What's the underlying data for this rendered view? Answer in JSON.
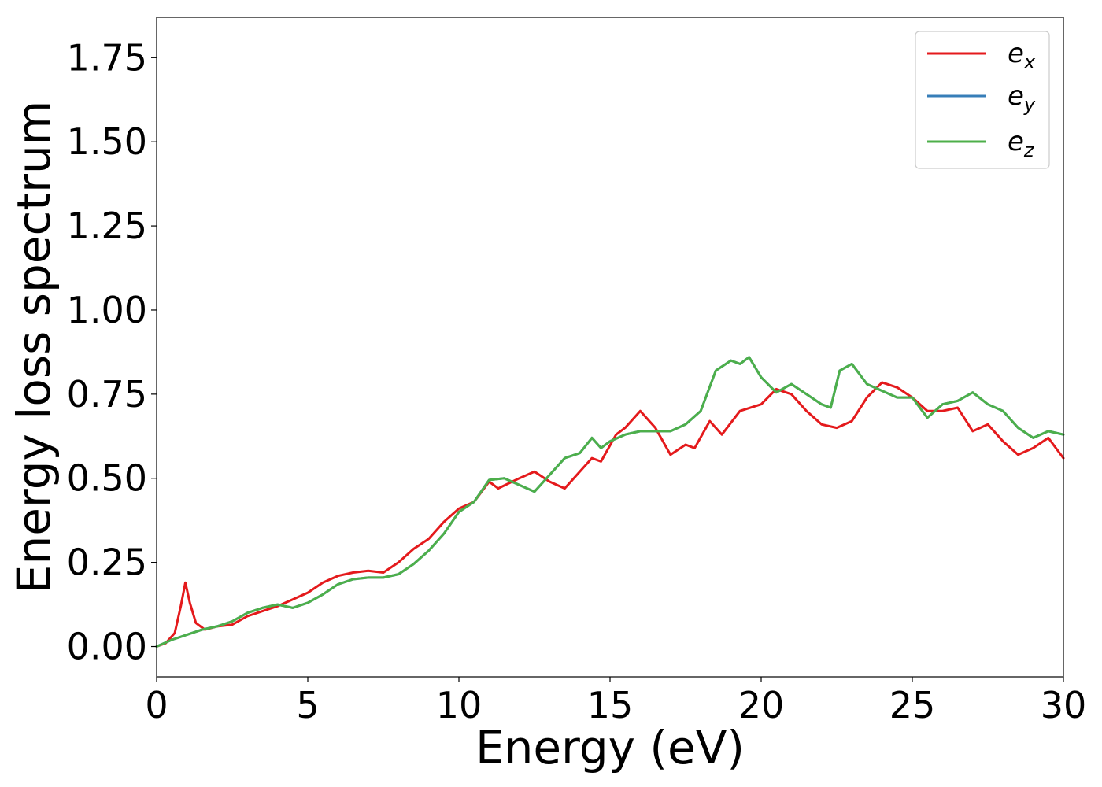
{
  "chart_data": {
    "type": "line",
    "title": "",
    "xlabel": "Energy (eV)",
    "ylabel": "Energy loss spectrum",
    "xlim": [
      0,
      30
    ],
    "ylim": [
      -0.09,
      1.87
    ],
    "xticks": [
      0,
      5,
      10,
      15,
      20,
      25,
      30
    ],
    "yticks": [
      0.0,
      0.25,
      0.5,
      0.75,
      1.0,
      1.25,
      1.5,
      1.75
    ],
    "xtick_labels": [
      "0",
      "5",
      "10",
      "15",
      "20",
      "25",
      "30"
    ],
    "ytick_labels": [
      "0.00",
      "0.25",
      "0.50",
      "0.75",
      "1.00",
      "1.25",
      "1.50",
      "1.75"
    ],
    "grid": false,
    "legend_position": "top-right",
    "series": [
      {
        "name": "e_x",
        "legend_base": "e",
        "legend_sub": "x",
        "color": "#e41a1c",
        "points": [
          [
            0,
            0
          ],
          [
            0.3,
            0.01
          ],
          [
            0.6,
            0.04
          ],
          [
            0.8,
            0.12
          ],
          [
            0.95,
            0.19
          ],
          [
            1.1,
            0.13
          ],
          [
            1.3,
            0.07
          ],
          [
            1.6,
            0.05
          ],
          [
            2,
            0.06
          ],
          [
            2.5,
            0.065
          ],
          [
            3,
            0.09
          ],
          [
            3.5,
            0.105
          ],
          [
            4,
            0.12
          ],
          [
            4.5,
            0.14
          ],
          [
            5,
            0.16
          ],
          [
            5.5,
            0.19
          ],
          [
            6,
            0.21
          ],
          [
            6.5,
            0.22
          ],
          [
            7,
            0.225
          ],
          [
            7.5,
            0.22
          ],
          [
            8,
            0.25
          ],
          [
            8.5,
            0.29
          ],
          [
            9,
            0.32
          ],
          [
            9.5,
            0.37
          ],
          [
            10,
            0.41
          ],
          [
            10.5,
            0.43
          ],
          [
            11,
            0.49
          ],
          [
            11.3,
            0.47
          ],
          [
            12,
            0.5
          ],
          [
            12.5,
            0.52
          ],
          [
            13,
            0.49
          ],
          [
            13.5,
            0.47
          ],
          [
            14,
            0.52
          ],
          [
            14.4,
            0.56
          ],
          [
            14.7,
            0.55
          ],
          [
            15.2,
            0.63
          ],
          [
            15.5,
            0.65
          ],
          [
            16,
            0.7
          ],
          [
            16.5,
            0.65
          ],
          [
            17,
            0.57
          ],
          [
            17.5,
            0.6
          ],
          [
            17.8,
            0.59
          ],
          [
            18.3,
            0.67
          ],
          [
            18.7,
            0.63
          ],
          [
            19.3,
            0.7
          ],
          [
            20,
            0.72
          ],
          [
            20.5,
            0.765
          ],
          [
            21,
            0.75
          ],
          [
            21.5,
            0.7
          ],
          [
            22,
            0.66
          ],
          [
            22.5,
            0.65
          ],
          [
            23,
            0.67
          ],
          [
            23.5,
            0.74
          ],
          [
            24,
            0.785
          ],
          [
            24.5,
            0.77
          ],
          [
            25,
            0.74
          ],
          [
            25.5,
            0.7
          ],
          [
            26,
            0.7
          ],
          [
            26.5,
            0.71
          ],
          [
            27,
            0.64
          ],
          [
            27.5,
            0.66
          ],
          [
            28,
            0.61
          ],
          [
            28.5,
            0.57
          ],
          [
            29,
            0.59
          ],
          [
            29.5,
            0.62
          ],
          [
            30,
            0.56
          ]
        ]
      },
      {
        "name": "e_y",
        "legend_base": "e",
        "legend_sub": "y",
        "color": "#377eb8",
        "points": [
          [
            0,
            0
          ],
          [
            0.5,
            0.02
          ],
          [
            1,
            0.035
          ],
          [
            1.5,
            0.05
          ],
          [
            2,
            0.06
          ],
          [
            2.5,
            0.075
          ],
          [
            3,
            0.1
          ],
          [
            3.5,
            0.115
          ],
          [
            4,
            0.125
          ],
          [
            4.5,
            0.115
          ],
          [
            5,
            0.13
          ],
          [
            5.5,
            0.155
          ],
          [
            6,
            0.185
          ],
          [
            6.5,
            0.2
          ],
          [
            7,
            0.205
          ],
          [
            7.5,
            0.205
          ],
          [
            8,
            0.215
          ],
          [
            8.5,
            0.245
          ],
          [
            9,
            0.285
          ],
          [
            9.5,
            0.335
          ],
          [
            10,
            0.4
          ],
          [
            10.5,
            0.43
          ],
          [
            11,
            0.495
          ],
          [
            11.5,
            0.5
          ],
          [
            12,
            0.48
          ],
          [
            12.5,
            0.46
          ],
          [
            13,
            0.51
          ],
          [
            13.5,
            0.56
          ],
          [
            14,
            0.575
          ],
          [
            14.4,
            0.62
          ],
          [
            14.7,
            0.59
          ],
          [
            15,
            0.61
          ],
          [
            15.5,
            0.63
          ],
          [
            16,
            0.64
          ],
          [
            16.5,
            0.64
          ],
          [
            17,
            0.64
          ],
          [
            17.5,
            0.66
          ],
          [
            18,
            0.7
          ],
          [
            18.5,
            0.82
          ],
          [
            19,
            0.85
          ],
          [
            19.3,
            0.84
          ],
          [
            19.6,
            0.86
          ],
          [
            20,
            0.8
          ],
          [
            20.5,
            0.755
          ],
          [
            21,
            0.78
          ],
          [
            21.5,
            0.75
          ],
          [
            22,
            0.72
          ],
          [
            22.3,
            0.71
          ],
          [
            22.6,
            0.82
          ],
          [
            23,
            0.84
          ],
          [
            23.5,
            0.78
          ],
          [
            24,
            0.76
          ],
          [
            24.5,
            0.74
          ],
          [
            25,
            0.74
          ],
          [
            25.5,
            0.68
          ],
          [
            26,
            0.72
          ],
          [
            26.5,
            0.73
          ],
          [
            27,
            0.755
          ],
          [
            27.5,
            0.72
          ],
          [
            28,
            0.7
          ],
          [
            28.5,
            0.65
          ],
          [
            29,
            0.62
          ],
          [
            29.5,
            0.64
          ],
          [
            30,
            0.63
          ]
        ]
      },
      {
        "name": "e_z",
        "legend_base": "e",
        "legend_sub": "z",
        "color": "#4daf4a",
        "points": [
          [
            0,
            0
          ],
          [
            0.5,
            0.02
          ],
          [
            1,
            0.035
          ],
          [
            1.5,
            0.05
          ],
          [
            2,
            0.06
          ],
          [
            2.5,
            0.075
          ],
          [
            3,
            0.1
          ],
          [
            3.5,
            0.115
          ],
          [
            4,
            0.125
          ],
          [
            4.5,
            0.115
          ],
          [
            5,
            0.13
          ],
          [
            5.5,
            0.155
          ],
          [
            6,
            0.185
          ],
          [
            6.5,
            0.2
          ],
          [
            7,
            0.205
          ],
          [
            7.5,
            0.205
          ],
          [
            8,
            0.215
          ],
          [
            8.5,
            0.245
          ],
          [
            9,
            0.285
          ],
          [
            9.5,
            0.335
          ],
          [
            10,
            0.4
          ],
          [
            10.5,
            0.43
          ],
          [
            11,
            0.495
          ],
          [
            11.5,
            0.5
          ],
          [
            12,
            0.48
          ],
          [
            12.5,
            0.46
          ],
          [
            13,
            0.51
          ],
          [
            13.5,
            0.56
          ],
          [
            14,
            0.575
          ],
          [
            14.4,
            0.62
          ],
          [
            14.7,
            0.59
          ],
          [
            15,
            0.61
          ],
          [
            15.5,
            0.63
          ],
          [
            16,
            0.64
          ],
          [
            16.5,
            0.64
          ],
          [
            17,
            0.64
          ],
          [
            17.5,
            0.66
          ],
          [
            18,
            0.7
          ],
          [
            18.5,
            0.82
          ],
          [
            19,
            0.85
          ],
          [
            19.3,
            0.84
          ],
          [
            19.6,
            0.86
          ],
          [
            20,
            0.8
          ],
          [
            20.5,
            0.755
          ],
          [
            21,
            0.78
          ],
          [
            21.5,
            0.75
          ],
          [
            22,
            0.72
          ],
          [
            22.3,
            0.71
          ],
          [
            22.6,
            0.82
          ],
          [
            23,
            0.84
          ],
          [
            23.5,
            0.78
          ],
          [
            24,
            0.76
          ],
          [
            24.5,
            0.74
          ],
          [
            25,
            0.74
          ],
          [
            25.5,
            0.68
          ],
          [
            26,
            0.72
          ],
          [
            26.5,
            0.73
          ],
          [
            27,
            0.755
          ],
          [
            27.5,
            0.72
          ],
          [
            28,
            0.7
          ],
          [
            28.5,
            0.65
          ],
          [
            29,
            0.62
          ],
          [
            29.5,
            0.64
          ],
          [
            30,
            0.63
          ]
        ]
      }
    ]
  }
}
